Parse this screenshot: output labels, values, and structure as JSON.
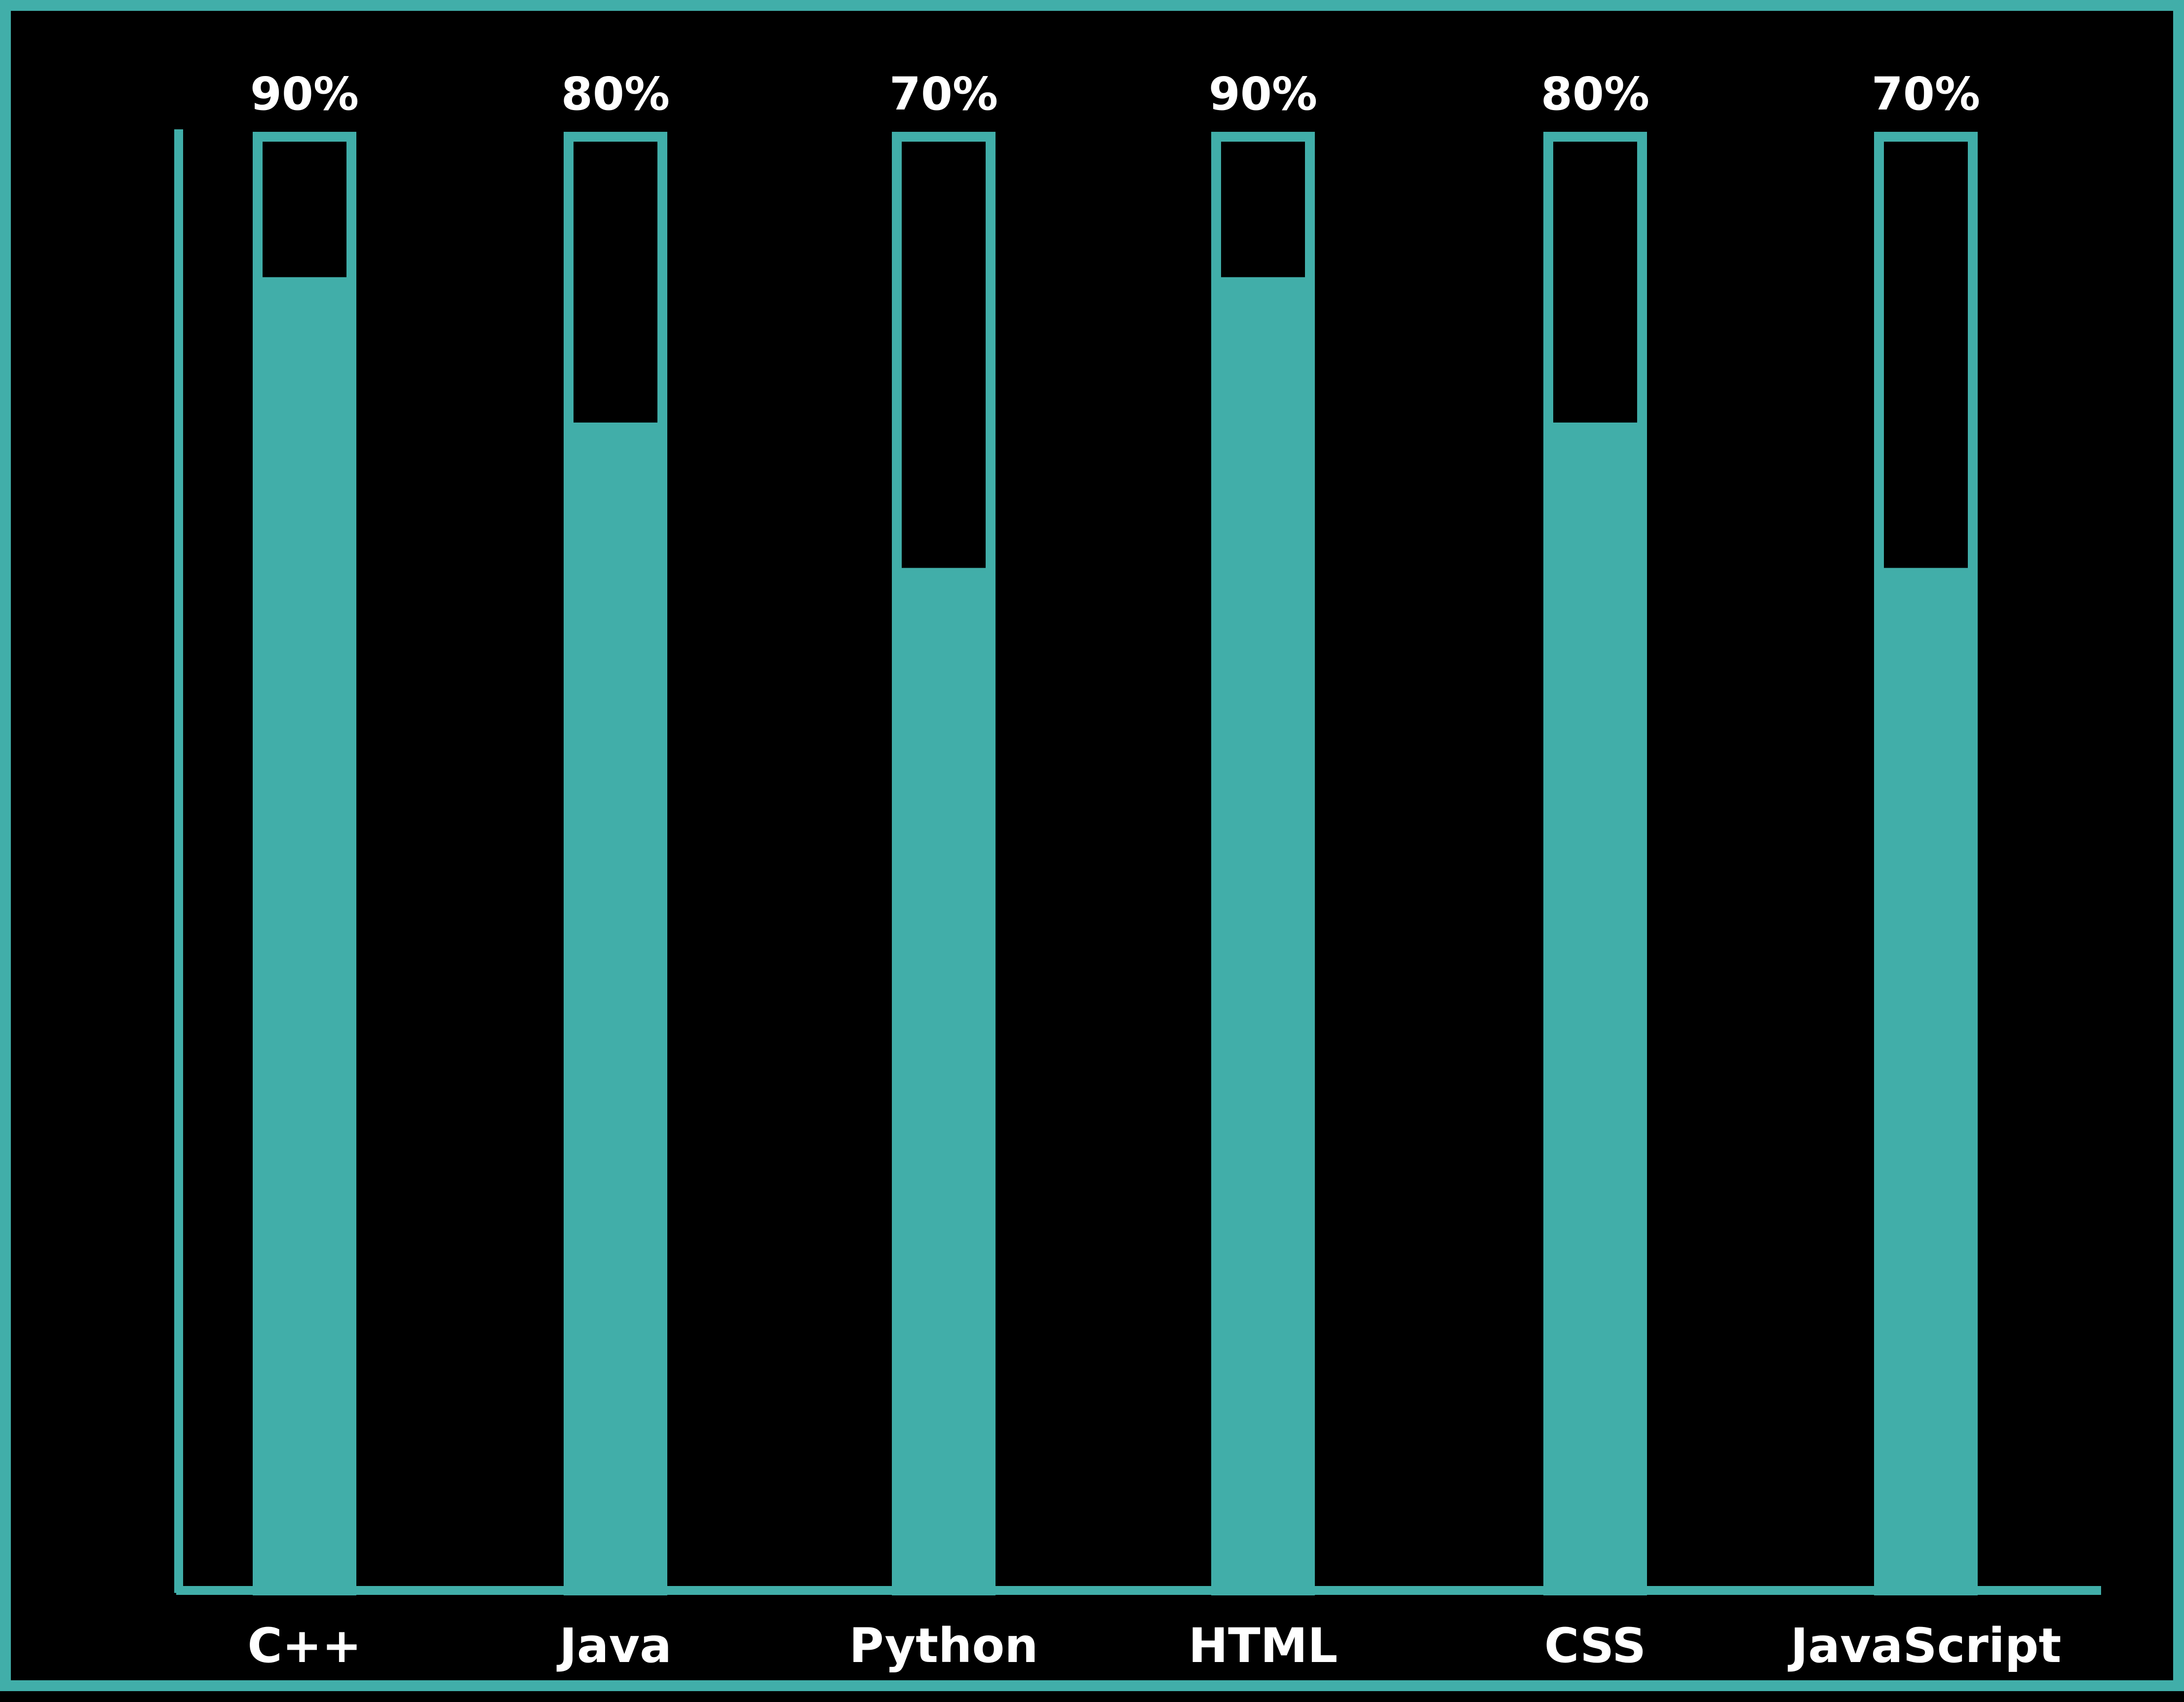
{
  "colors": {
    "background": "#000000",
    "bar": "#41aea9",
    "frame": "#41aea9",
    "text": "#ffffff"
  },
  "chart_data": {
    "type": "bar",
    "categories": [
      "C++",
      "Java",
      "Python",
      "HTML",
      "CSS",
      "JavaScript"
    ],
    "values": [
      90,
      80,
      70,
      90,
      80,
      70
    ],
    "data_labels": [
      "90%",
      "80%",
      "70%",
      "90%",
      "80%",
      "70%"
    ],
    "max_value": 100,
    "ylim": [
      0,
      100
    ],
    "grid": false,
    "legend": "none"
  }
}
